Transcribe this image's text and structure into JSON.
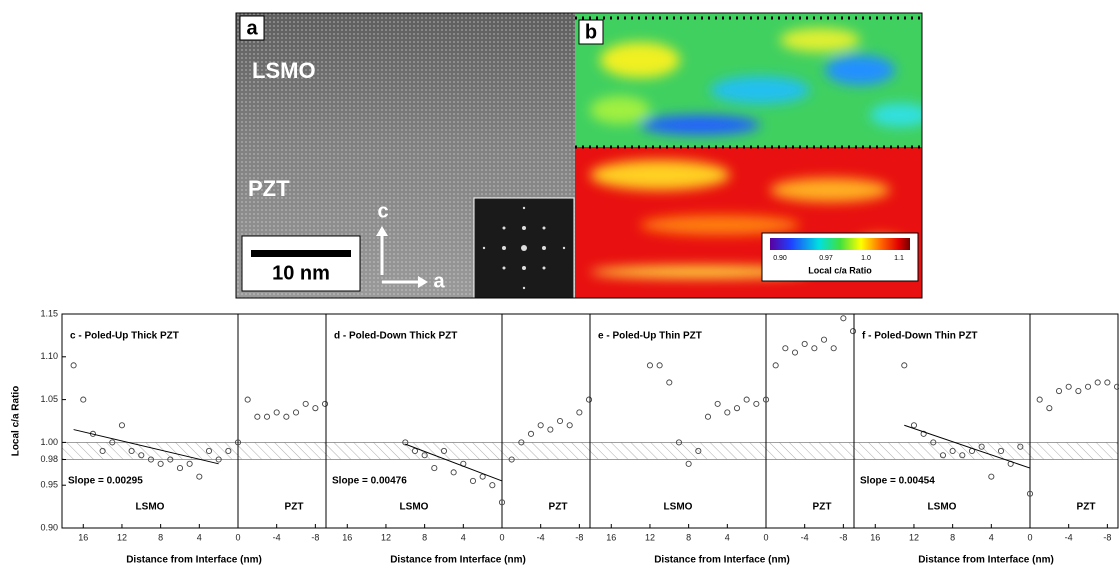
{
  "images": {
    "a": {
      "label": "a",
      "regions": [
        "LSMO",
        "PZT"
      ],
      "scale_bar": "10 nm",
      "axes": [
        "c",
        "a"
      ]
    },
    "b": {
      "label": "b",
      "colorbar": {
        "ticks": [
          "0.90",
          "0.97",
          "1.0",
          "1.1"
        ],
        "title": "Local c/a Ratio"
      }
    }
  },
  "chart_data": [
    {
      "type": "scatter",
      "title": "c - Poled-Up Thick PZT",
      "annotation": "Slope = 0.00295",
      "region_labels": [
        "LSMO",
        "PZT"
      ],
      "xlabel": "Distance from Interface (nm)",
      "ylabel": "Local c/a Ratio",
      "color": "#444444",
      "xlim": [
        18.2,
        -9.1
      ],
      "xticks": [
        16,
        12,
        8,
        4,
        0,
        -4,
        -8
      ],
      "ylim": [
        0.9,
        1.15
      ],
      "yticks": [
        {
          "value": 0.9,
          "label": "0.90"
        },
        0.95,
        0.98,
        {
          "value": 1.0,
          "label": "1.00"
        },
        1.05,
        {
          "value": 1.1,
          "label": "1.10"
        },
        1.15
      ],
      "reference_band": [
        0.98,
        1.0
      ],
      "x": [
        17,
        16,
        15,
        14,
        13,
        12,
        11,
        10,
        9,
        8,
        7,
        6,
        5,
        4,
        3,
        2,
        1,
        0,
        -1,
        -2,
        -3,
        -4,
        -5,
        -6,
        -7,
        -8,
        -9
      ],
      "values": [
        1.09,
        1.05,
        1.01,
        0.99,
        1.0,
        1.02,
        0.99,
        0.985,
        0.98,
        0.975,
        0.98,
        0.97,
        0.975,
        0.96,
        0.99,
        0.98,
        0.99,
        1.0,
        1.05,
        1.03,
        1.03,
        1.035,
        1.03,
        1.035,
        1.045,
        1.04,
        1.045
      ],
      "fit": {
        "x": [
          17,
          2
        ],
        "y": [
          1.015,
          0.975
        ]
      }
    },
    {
      "type": "scatter",
      "title": "d - Poled-Down Thick PZT",
      "annotation": "Slope = 0.00476",
      "region_labels": [
        "LSMO",
        "PZT"
      ],
      "xlabel": "Distance from Interface (nm)",
      "color": "#444444",
      "xlim": [
        18.2,
        -9.1
      ],
      "xticks": [
        16,
        12,
        8,
        4,
        0,
        -4,
        -8
      ],
      "ylim": [
        0.9,
        1.15
      ],
      "reference_band": [
        0.98,
        1.0
      ],
      "x": [
        10,
        9,
        8,
        7,
        6,
        5,
        4,
        3,
        2,
        1,
        0,
        -1,
        -2,
        -3,
        -4,
        -5,
        -6,
        -7,
        -8,
        -9
      ],
      "values": [
        1.0,
        0.99,
        0.985,
        0.97,
        0.99,
        0.965,
        0.975,
        0.955,
        0.96,
        0.95,
        0.93,
        0.98,
        1.0,
        1.01,
        1.02,
        1.015,
        1.025,
        1.02,
        1.035,
        1.05
      ],
      "fit": {
        "x": [
          10,
          0
        ],
        "y": [
          0.998,
          0.955
        ]
      }
    },
    {
      "type": "scatter",
      "title": "e - Poled-Up Thin PZT",
      "region_labels": [
        "LSMO",
        "PZT"
      ],
      "xlabel": "Distance from Interface (nm)",
      "color": "#444444",
      "xlim": [
        18.2,
        -9.1
      ],
      "xticks": [
        16,
        12,
        8,
        4,
        0,
        -4,
        -8
      ],
      "ylim": [
        0.9,
        1.15
      ],
      "reference_band": [
        0.98,
        1.0
      ],
      "x": [
        12,
        11,
        10,
        9,
        8,
        7,
        6,
        5,
        4,
        3,
        2,
        1,
        0,
        -1,
        -2,
        -3,
        -4,
        -5,
        -6,
        -7,
        -8,
        -9
      ],
      "values": [
        1.09,
        1.09,
        1.07,
        1.0,
        0.975,
        0.99,
        1.03,
        1.045,
        1.035,
        1.04,
        1.05,
        1.045,
        1.05,
        1.09,
        1.11,
        1.105,
        1.115,
        1.11,
        1.12,
        1.11,
        1.145,
        1.13
      ]
    },
    {
      "type": "scatter",
      "title": "f - Poled-Down Thin PZT",
      "annotation": "Slope = 0.00454",
      "region_labels": [
        "LSMO",
        "PZT"
      ],
      "xlabel": "Distance from Interface (nm)",
      "color": "#444444",
      "xlim": [
        18.2,
        -9.1
      ],
      "xticks": [
        16,
        12,
        8,
        4,
        0,
        -4,
        -8
      ],
      "ylim": [
        0.9,
        1.15
      ],
      "reference_band": [
        0.98,
        1.0
      ],
      "x": [
        13,
        12,
        11,
        10,
        9,
        8,
        7,
        6,
        5,
        4,
        3,
        2,
        1,
        0,
        -1,
        -2,
        -3,
        -4,
        -5,
        -6,
        -7,
        -8,
        -9
      ],
      "values": [
        1.09,
        1.02,
        1.01,
        1.0,
        0.985,
        0.99,
        0.985,
        0.99,
        0.995,
        0.96,
        0.99,
        0.975,
        0.995,
        0.94,
        1.05,
        1.04,
        1.06,
        1.065,
        1.06,
        1.065,
        1.07,
        1.07,
        1.065
      ],
      "fit": {
        "x": [
          13,
          0
        ],
        "y": [
          1.02,
          0.97
        ]
      }
    }
  ]
}
